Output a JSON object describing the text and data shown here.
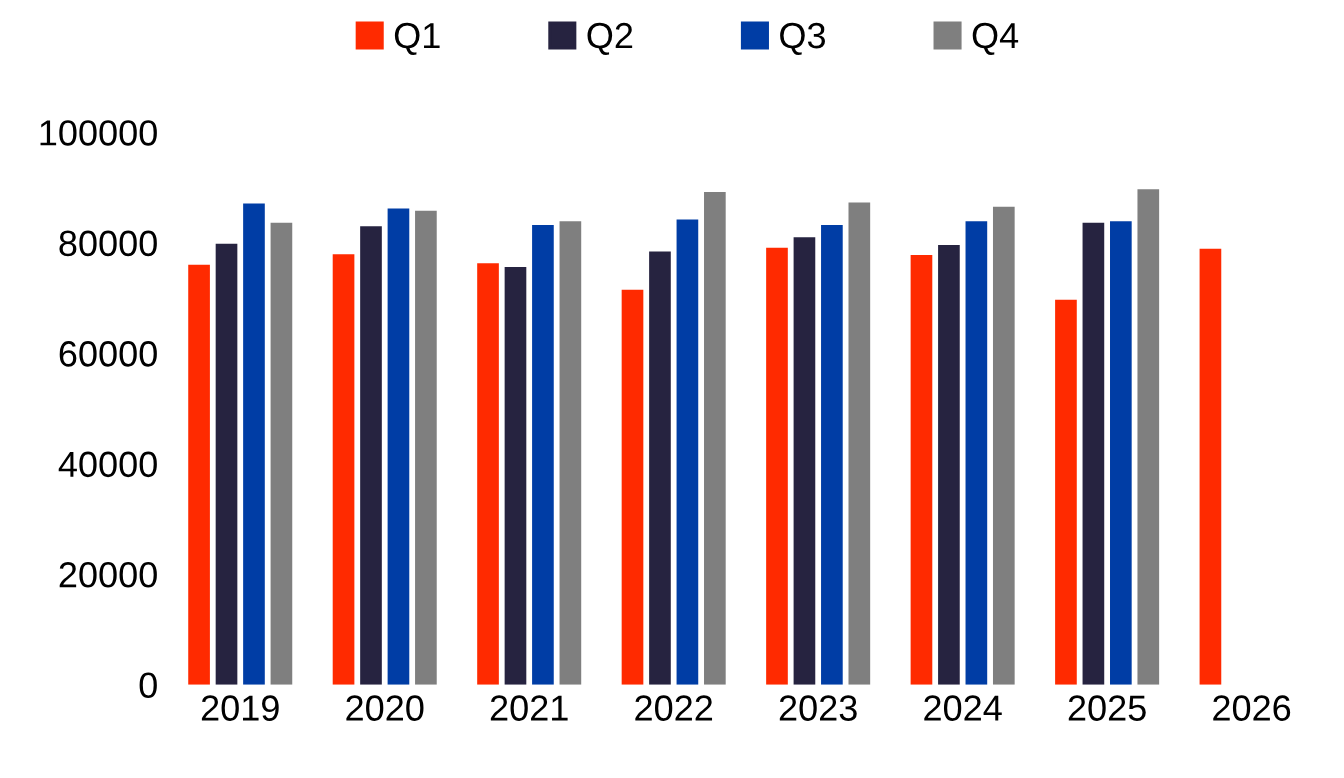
{
  "chart_data": {
    "type": "bar",
    "categories": [
      "2019",
      "2020",
      "2021",
      "2022",
      "2023",
      "2024",
      "2025",
      "2026"
    ],
    "series": [
      {
        "name": "Q1",
        "color": "#ff2a00",
        "values": [
          76000,
          77900,
          76300,
          71500,
          79100,
          77800,
          69700,
          78900
        ]
      },
      {
        "name": "Q2",
        "color": "#262340",
        "values": [
          79800,
          83000,
          75600,
          78400,
          81000,
          79600,
          83600,
          null
        ]
      },
      {
        "name": "Q3",
        "color": "#003da5",
        "values": [
          87100,
          86200,
          83200,
          84200,
          83200,
          83900,
          83900,
          null
        ]
      },
      {
        "name": "Q4",
        "color": "#7f7f7f",
        "values": [
          83600,
          85800,
          83900,
          89200,
          87300,
          86500,
          89700,
          null
        ]
      }
    ],
    "ylim": [
      0,
      100000
    ],
    "yticks": [
      0,
      20000,
      40000,
      60000,
      80000,
      100000
    ],
    "grid": false,
    "legend": "top"
  }
}
